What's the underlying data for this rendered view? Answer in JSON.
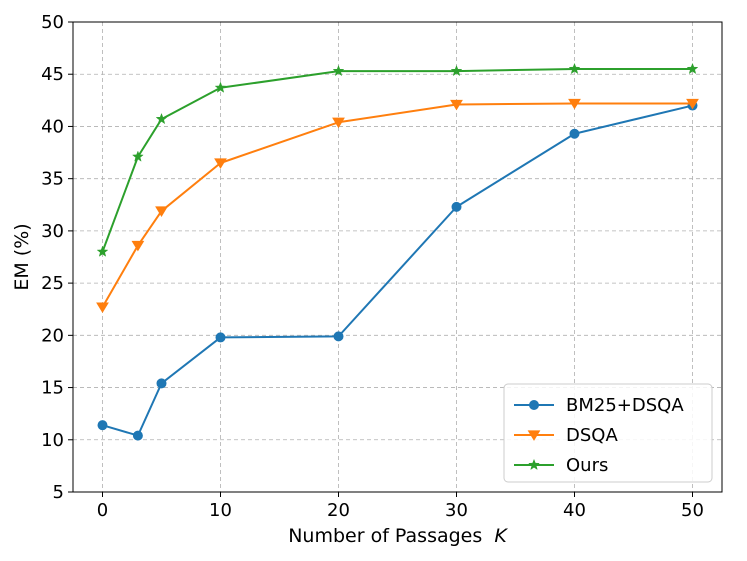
{
  "chart_data": {
    "type": "line",
    "title": "",
    "xlabel": "Number of Passages",
    "xlabel_var": "K",
    "ylabel": "EM (%)",
    "xlim": [
      -2.5,
      52.5
    ],
    "ylim": [
      5,
      50
    ],
    "xticks": [
      0,
      10,
      20,
      30,
      40,
      50
    ],
    "yticks": [
      5,
      10,
      15,
      20,
      25,
      30,
      35,
      40,
      45,
      50
    ],
    "grid": true,
    "legend_position": "lower-right",
    "x": [
      0,
      3,
      5,
      10,
      20,
      30,
      40,
      50
    ],
    "series": [
      {
        "name": "BM25+DSQA",
        "color": "#1f77b4",
        "marker": "circle",
        "values": [
          11.4,
          10.4,
          15.4,
          19.8,
          19.9,
          32.3,
          39.3,
          42.0
        ]
      },
      {
        "name": "DSQA",
        "color": "#ff7f0e",
        "marker": "triangle-down",
        "values": [
          22.7,
          28.6,
          31.9,
          36.5,
          40.4,
          42.1,
          42.2,
          42.2
        ]
      },
      {
        "name": "Ours",
        "color": "#2ca02c",
        "marker": "star",
        "values": [
          28.0,
          37.1,
          40.7,
          43.7,
          45.3,
          45.3,
          45.5,
          45.5
        ]
      }
    ]
  }
}
